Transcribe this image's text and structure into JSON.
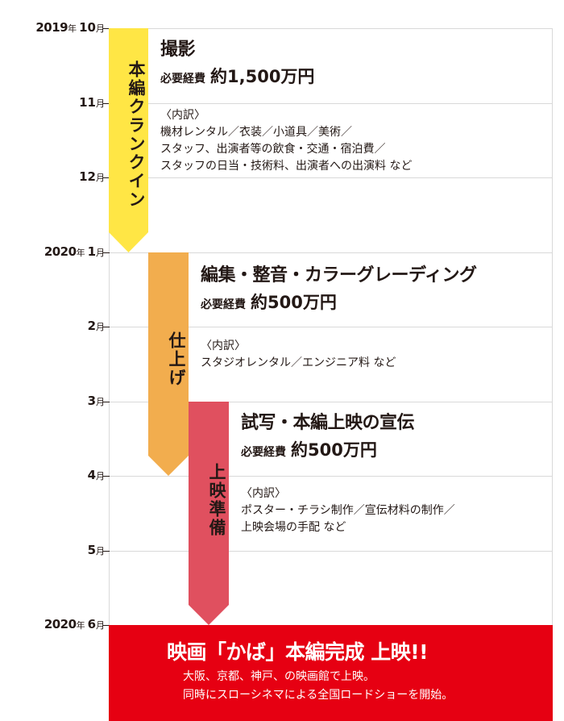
{
  "timeline": {
    "months": [
      {
        "year": "2019",
        "year_unit": "年",
        "month": "10",
        "month_unit": "月"
      },
      {
        "year": "",
        "year_unit": "",
        "month": "11",
        "month_unit": "月"
      },
      {
        "year": "",
        "year_unit": "",
        "month": "12",
        "month_unit": "月"
      },
      {
        "year": "2020",
        "year_unit": "年",
        "month": "1",
        "month_unit": "月"
      },
      {
        "year": "",
        "year_unit": "",
        "month": "2",
        "month_unit": "月"
      },
      {
        "year": "",
        "year_unit": "",
        "month": "3",
        "month_unit": "月"
      },
      {
        "year": "",
        "year_unit": "",
        "month": "4",
        "month_unit": "月"
      },
      {
        "year": "",
        "year_unit": "",
        "month": "5",
        "month_unit": "月"
      },
      {
        "year": "2020",
        "year_unit": "年",
        "month": "6",
        "month_unit": "月"
      }
    ]
  },
  "phases": [
    {
      "bar_label": "本編クランクイン",
      "color": "#ffe645",
      "title": "撮影",
      "cost_label": "必要経費",
      "cost_value": "約1,500万円",
      "details": [
        "〈内訳〉",
        "機材レンタル／衣装／小道具／美術／",
        "スタッフ、出演者等の飲食・交通・宿泊費／",
        "スタッフの日当・技術料、出演者への出演料 など"
      ]
    },
    {
      "bar_label": "仕上げ",
      "color": "#f2ad4e",
      "title": "編集・整音・カラーグレーディング",
      "cost_label": "必要経費",
      "cost_value": "約500万円",
      "details": [
        "〈内訳〉",
        "スタジオレンタル／エンジニア料 など"
      ]
    },
    {
      "bar_label": "上映準備",
      "color": "#e0505f",
      "title": "試写・本編上映の宣伝",
      "cost_label": "必要経費",
      "cost_value": "約500万円",
      "details": [
        "〈内訳〉",
        "ポスター・チラシ制作／宣伝材料の制作／",
        "上映会場の手配 など"
      ]
    }
  ],
  "final": {
    "color": "#e60012",
    "title": "映画「かば」本編完成 上映!!",
    "lines": [
      "大阪、京都、神戸、の映画館で上映。",
      "同時にスローシネマによる全国ロードショーを開始。"
    ]
  }
}
